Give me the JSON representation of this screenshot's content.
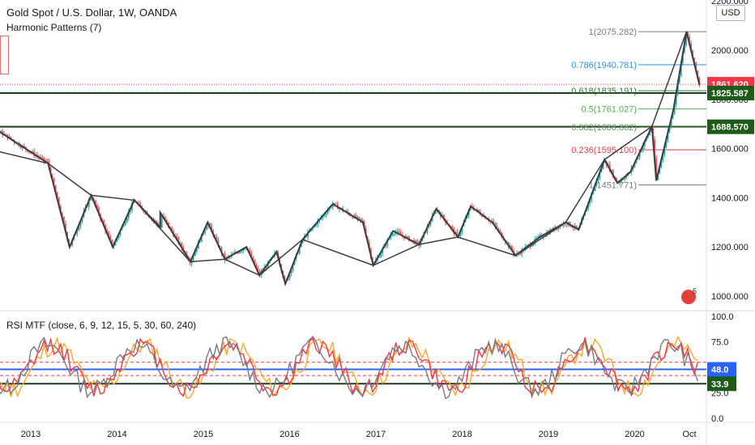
{
  "header": {
    "title": "Gold Spot / U.S. Dollar, 1W, OANDA",
    "indicator": "Harmonic Patterns (7)",
    "currency": "USD"
  },
  "rsi_panel": {
    "title": "RSI MTF (close, 6, 9, 12, 15, 5, 30, 60, 240)"
  },
  "colors": {
    "price_label_red": "#f23645",
    "support_green": "#1e5b1a",
    "candle_up": "#26a69a",
    "candle_down": "#ef5350",
    "pattern_line": "#3c3c44",
    "rsi_blue_label": "#2962ff"
  },
  "chart_data": [
    {
      "type": "candlestick",
      "title": "Gold Spot / U.S. Dollar, 1W, OANDA",
      "x_ticks": [
        "2013",
        "2014",
        "2015",
        "2016",
        "2017",
        "2018",
        "2019",
        "2020",
        "Oct"
      ],
      "y_ticks": [
        "1000.000",
        "1200.000",
        "1400.000",
        "1600.000",
        "1800.000",
        "2000.000",
        "2200.000"
      ],
      "ylim": [
        980,
        2200
      ],
      "approx_path": [
        {
          "x": 2012.0,
          "y": 1640
        },
        {
          "x": 2012.1,
          "y": 1795
        },
        {
          "x": 2012.5,
          "y": 1700
        },
        {
          "x": 2013.2,
          "y": 1540
        },
        {
          "x": 2013.45,
          "y": 1200
        },
        {
          "x": 2013.7,
          "y": 1410
        },
        {
          "x": 2013.95,
          "y": 1200
        },
        {
          "x": 2014.2,
          "y": 1390
        },
        {
          "x": 2014.5,
          "y": 1280
        },
        {
          "x": 2014.5,
          "y": 1340
        },
        {
          "x": 2014.85,
          "y": 1140
        },
        {
          "x": 2015.05,
          "y": 1300
        },
        {
          "x": 2015.25,
          "y": 1150
        },
        {
          "x": 2015.5,
          "y": 1200
        },
        {
          "x": 2015.65,
          "y": 1085
        },
        {
          "x": 2015.85,
          "y": 1180
        },
        {
          "x": 2015.95,
          "y": 1050
        },
        {
          "x": 2016.15,
          "y": 1230
        },
        {
          "x": 2016.5,
          "y": 1375
        },
        {
          "x": 2016.85,
          "y": 1300
        },
        {
          "x": 2016.97,
          "y": 1125
        },
        {
          "x": 2017.2,
          "y": 1265
        },
        {
          "x": 2017.5,
          "y": 1210
        },
        {
          "x": 2017.7,
          "y": 1355
        },
        {
          "x": 2017.95,
          "y": 1240
        },
        {
          "x": 2018.1,
          "y": 1365
        },
        {
          "x": 2018.35,
          "y": 1300
        },
        {
          "x": 2018.62,
          "y": 1165
        },
        {
          "x": 2018.9,
          "y": 1240
        },
        {
          "x": 2019.2,
          "y": 1300
        },
        {
          "x": 2019.35,
          "y": 1270
        },
        {
          "x": 2019.65,
          "y": 1555
        },
        {
          "x": 2019.8,
          "y": 1460
        },
        {
          "x": 2019.95,
          "y": 1505
        },
        {
          "x": 2020.2,
          "y": 1690
        },
        {
          "x": 2020.25,
          "y": 1470
        },
        {
          "x": 2020.45,
          "y": 1760
        },
        {
          "x": 2020.6,
          "y": 2075
        },
        {
          "x": 2020.75,
          "y": 1860
        }
      ]
    },
    {
      "type": "annotations",
      "fib_levels": [
        {
          "label": "1(2075.282)",
          "value": 2075.282,
          "color": "#787b86"
        },
        {
          "label": "0.786(1940.781)",
          "value": 1940.781,
          "color": "#2196f3"
        },
        {
          "label": "0.618(1835.191)",
          "value": 1835.191,
          "color": "#2e7d32"
        },
        {
          "label": "0.5(1761.027)",
          "value": 1761.027,
          "color": "#4caf50"
        },
        {
          "label": "0.382(1686.862)",
          "value": 1686.862,
          "color": "#5d9c59"
        },
        {
          "label": "0.236(1595.100)",
          "value": 1595.1,
          "color": "#f23645"
        },
        {
          "label": "1(1451.771)",
          "value": 1451.771,
          "color": "#787b86"
        }
      ],
      "price_labels": [
        {
          "text": "1861.620",
          "value": 1861.62,
          "bg": "#f23645"
        },
        {
          "text": "1825.587",
          "value": 1825.587,
          "bg": "#1e5b1a"
        },
        {
          "text": "1688.570",
          "value": 1688.57,
          "bg": "#1e5b1a"
        }
      ],
      "horizontal_lines": [
        {
          "value": 1825.587,
          "style": "solid"
        },
        {
          "value": 1688.57,
          "style": "solid"
        },
        {
          "value": 1861.62,
          "style": "dotted"
        }
      ]
    },
    {
      "type": "line",
      "title": "RSI MTF (close, 6, 9, 12, 15, 5, 30, 60, 240)",
      "y_ticks": [
        "0.0",
        "25.0",
        "75.0",
        "100.0"
      ],
      "ylim": [
        0,
        100
      ],
      "current_values": [
        {
          "text": "48.0",
          "value": 48.0,
          "bg": "#2962ff"
        },
        {
          "text": "33.9",
          "value": 33.9,
          "bg": "#1e5b1a"
        }
      ],
      "reference_lines": [
        {
          "value": 33.9,
          "style": "solid"
        },
        {
          "value": 48,
          "style": "solid"
        },
        {
          "value": 55,
          "style": "dashed"
        },
        {
          "value": 42,
          "style": "dashed"
        }
      ]
    }
  ]
}
